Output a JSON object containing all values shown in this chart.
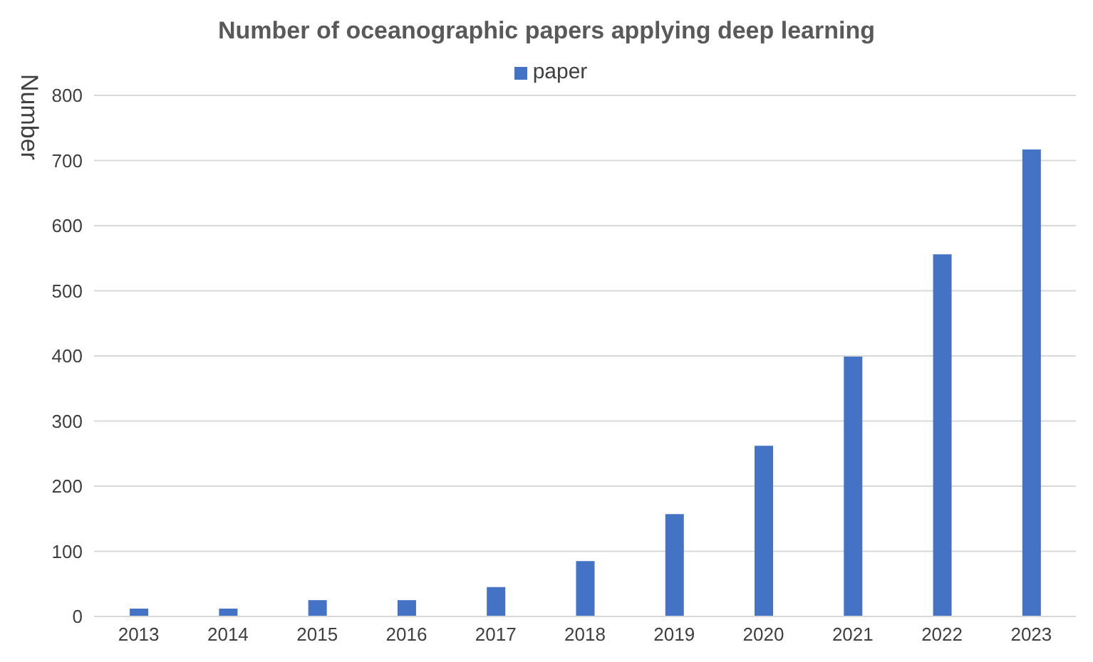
{
  "chart_data": {
    "type": "bar",
    "title": "Number of oceanographic papers applying deep learning",
    "ylabel": "Number",
    "categories": [
      "2013",
      "2014",
      "2015",
      "2016",
      "2017",
      "2018",
      "2019",
      "2020",
      "2021",
      "2022",
      "2023"
    ],
    "series": [
      {
        "name": "paper",
        "color": "#4472c4",
        "values": [
          12,
          12,
          25,
          25,
          45,
          85,
          157,
          262,
          399,
          556,
          717
        ]
      }
    ],
    "ylim": [
      0,
      800
    ],
    "yticks": [
      0,
      100,
      200,
      300,
      400,
      500,
      600,
      700,
      800
    ],
    "grid": "y",
    "legend": "top"
  }
}
